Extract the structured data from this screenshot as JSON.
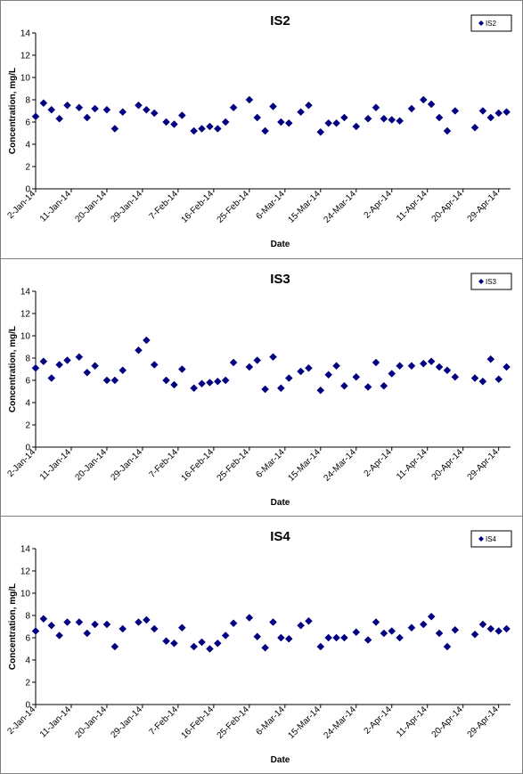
{
  "chart_data": [
    {
      "type": "scatter",
      "title": "IS2",
      "xlabel": "Date",
      "ylabel": "Concentration, mg/L",
      "ylim": [
        0,
        14
      ],
      "yticks": [
        0,
        2,
        4,
        6,
        8,
        10,
        12,
        14
      ],
      "xlim": [
        "2014-01-02",
        "2014-05-02"
      ],
      "xticks": [
        "2-Jan-14",
        "11-Jan-14",
        "20-Jan-14",
        "29-Jan-14",
        "7-Feb-14",
        "16-Feb-14",
        "25-Feb-14",
        "6-Mar-14",
        "15-Mar-14",
        "24-Mar-14",
        "2-Apr-14",
        "11-Apr-14",
        "20-Apr-14",
        "29-Apr-14"
      ],
      "grid": false,
      "legend": "top-right",
      "color": "#000080",
      "series": [
        {
          "name": "IS2",
          "x": [
            "2014-01-02",
            "2014-01-04",
            "2014-01-06",
            "2014-01-08",
            "2014-01-10",
            "2014-01-13",
            "2014-01-15",
            "2014-01-17",
            "2014-01-20",
            "2014-01-22",
            "2014-01-24",
            "2014-01-28",
            "2014-01-30",
            "2014-02-01",
            "2014-02-04",
            "2014-02-06",
            "2014-02-08",
            "2014-02-11",
            "2014-02-13",
            "2014-02-15",
            "2014-02-17",
            "2014-02-19",
            "2014-02-21",
            "2014-02-25",
            "2014-02-27",
            "2014-03-01",
            "2014-03-03",
            "2014-03-05",
            "2014-03-07",
            "2014-03-10",
            "2014-03-12",
            "2014-03-15",
            "2014-03-17",
            "2014-03-19",
            "2014-03-21",
            "2014-03-24",
            "2014-03-27",
            "2014-03-29",
            "2014-03-31",
            "2014-04-02",
            "2014-04-04",
            "2014-04-07",
            "2014-04-10",
            "2014-04-12",
            "2014-04-14",
            "2014-04-16",
            "2014-04-18",
            "2014-04-23",
            "2014-04-25",
            "2014-04-27",
            "2014-04-29",
            "2014-05-01"
          ],
          "y": [
            6.5,
            7.7,
            7.1,
            6.3,
            7.5,
            7.3,
            6.4,
            7.2,
            7.1,
            5.4,
            6.9,
            7.5,
            7.1,
            6.8,
            6.0,
            5.8,
            6.6,
            5.2,
            5.4,
            5.6,
            5.4,
            6.0,
            7.3,
            8.0,
            6.4,
            5.2,
            7.4,
            6.0,
            5.9,
            6.9,
            7.5,
            5.1,
            5.9,
            5.9,
            6.4,
            5.6,
            6.3,
            7.3,
            6.3,
            6.2,
            6.1,
            7.2,
            8.0,
            7.6,
            6.4,
            5.2,
            7.0,
            5.5,
            7.0,
            6.4,
            6.8,
            6.9
          ]
        }
      ]
    },
    {
      "type": "scatter",
      "title": "IS3",
      "xlabel": "Date",
      "ylabel": "Concentration, mg/L",
      "ylim": [
        0,
        14
      ],
      "yticks": [
        0,
        2,
        4,
        6,
        8,
        10,
        12,
        14
      ],
      "xlim": [
        "2014-01-02",
        "2014-05-02"
      ],
      "xticks": [
        "2-Jan-14",
        "11-Jan-14",
        "20-Jan-14",
        "29-Jan-14",
        "7-Feb-14",
        "16-Feb-14",
        "25-Feb-14",
        "6-Mar-14",
        "15-Mar-14",
        "24-Mar-14",
        "2-Apr-14",
        "11-Apr-14",
        "20-Apr-14",
        "29-Apr-14"
      ],
      "grid": false,
      "legend": "top-right",
      "color": "#000080",
      "series": [
        {
          "name": "IS3",
          "x": [
            "2014-01-02",
            "2014-01-04",
            "2014-01-06",
            "2014-01-08",
            "2014-01-10",
            "2014-01-13",
            "2014-01-15",
            "2014-01-17",
            "2014-01-20",
            "2014-01-22",
            "2014-01-24",
            "2014-01-28",
            "2014-01-30",
            "2014-02-01",
            "2014-02-04",
            "2014-02-06",
            "2014-02-08",
            "2014-02-11",
            "2014-02-13",
            "2014-02-15",
            "2014-02-17",
            "2014-02-19",
            "2014-02-21",
            "2014-02-25",
            "2014-02-27",
            "2014-03-01",
            "2014-03-03",
            "2014-03-05",
            "2014-03-07",
            "2014-03-10",
            "2014-03-12",
            "2014-03-15",
            "2014-03-17",
            "2014-03-19",
            "2014-03-21",
            "2014-03-24",
            "2014-03-27",
            "2014-03-29",
            "2014-03-31",
            "2014-04-02",
            "2014-04-04",
            "2014-04-07",
            "2014-04-10",
            "2014-04-12",
            "2014-04-14",
            "2014-04-16",
            "2014-04-18",
            "2014-04-23",
            "2014-04-25",
            "2014-04-27",
            "2014-04-29",
            "2014-05-01"
          ],
          "y": [
            7.1,
            7.7,
            6.2,
            7.4,
            7.8,
            8.1,
            6.7,
            7.3,
            6.0,
            6.0,
            6.9,
            8.7,
            9.6,
            7.4,
            6.0,
            5.6,
            7.0,
            5.3,
            5.7,
            5.8,
            5.9,
            6.0,
            7.6,
            7.2,
            7.8,
            5.2,
            8.1,
            5.3,
            6.2,
            6.8,
            7.1,
            5.1,
            6.5,
            7.3,
            5.5,
            6.3,
            5.4,
            7.6,
            5.5,
            6.6,
            7.3,
            7.3,
            7.5,
            7.7,
            7.2,
            6.9,
            6.3,
            6.2,
            5.9,
            7.9,
            6.1,
            7.2
          ]
        }
      ]
    },
    {
      "type": "scatter",
      "title": "IS4",
      "xlabel": "Date",
      "ylabel": "Concentration, mg/L",
      "ylim": [
        0,
        14
      ],
      "yticks": [
        0,
        2,
        4,
        6,
        8,
        10,
        12,
        14
      ],
      "xlim": [
        "2014-01-02",
        "2014-05-02"
      ],
      "xticks": [
        "2-Jan-14",
        "11-Jan-14",
        "20-Jan-14",
        "29-Jan-14",
        "7-Feb-14",
        "16-Feb-14",
        "25-Feb-14",
        "6-Mar-14",
        "15-Mar-14",
        "24-Mar-14",
        "2-Apr-14",
        "11-Apr-14",
        "20-Apr-14",
        "29-Apr-14"
      ],
      "grid": false,
      "legend": "top-right",
      "color": "#000080",
      "series": [
        {
          "name": "IS4",
          "x": [
            "2014-01-02",
            "2014-01-04",
            "2014-01-06",
            "2014-01-08",
            "2014-01-10",
            "2014-01-13",
            "2014-01-15",
            "2014-01-17",
            "2014-01-20",
            "2014-01-22",
            "2014-01-24",
            "2014-01-28",
            "2014-01-30",
            "2014-02-01",
            "2014-02-04",
            "2014-02-06",
            "2014-02-08",
            "2014-02-11",
            "2014-02-13",
            "2014-02-15",
            "2014-02-17",
            "2014-02-19",
            "2014-02-21",
            "2014-02-25",
            "2014-02-27",
            "2014-03-01",
            "2014-03-03",
            "2014-03-05",
            "2014-03-07",
            "2014-03-10",
            "2014-03-12",
            "2014-03-15",
            "2014-03-17",
            "2014-03-19",
            "2014-03-21",
            "2014-03-24",
            "2014-03-27",
            "2014-03-29",
            "2014-03-31",
            "2014-04-02",
            "2014-04-04",
            "2014-04-07",
            "2014-04-10",
            "2014-04-12",
            "2014-04-14",
            "2014-04-16",
            "2014-04-18",
            "2014-04-23",
            "2014-04-25",
            "2014-04-27",
            "2014-04-29",
            "2014-05-01"
          ],
          "y": [
            6.6,
            7.7,
            7.1,
            6.2,
            7.4,
            7.4,
            6.4,
            7.2,
            7.2,
            5.2,
            6.8,
            7.4,
            7.6,
            6.8,
            5.7,
            5.5,
            6.9,
            5.2,
            5.6,
            5.0,
            5.5,
            6.2,
            7.3,
            7.8,
            6.1,
            5.1,
            7.4,
            6.0,
            5.9,
            7.1,
            7.5,
            5.2,
            6.0,
            6.0,
            6.0,
            6.5,
            5.8,
            7.4,
            6.4,
            6.6,
            6.0,
            6.9,
            7.2,
            7.9,
            6.4,
            5.2,
            6.7,
            6.3,
            7.2,
            6.8,
            6.6,
            6.8
          ]
        }
      ]
    }
  ]
}
